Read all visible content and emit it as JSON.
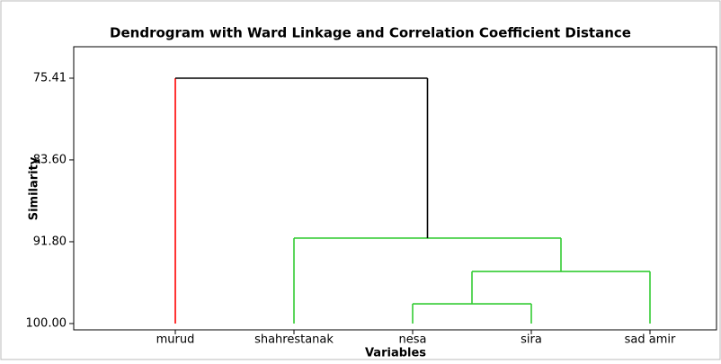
{
  "chart_data": {
    "type": "dendrogram",
    "title": "Dendrogram with Ward Linkage and Correlation Coefficient Distance",
    "xlabel": "Variables",
    "ylabel": "Similarity",
    "categories": [
      "murud",
      "shahrestanak",
      "nesa",
      "sira",
      "sad amir"
    ],
    "leaf_colors": [
      "#ff0000",
      "#33cc33",
      "#33cc33",
      "#33cc33",
      "#33cc33"
    ],
    "merges": [
      {
        "children": [
          2,
          3
        ],
        "value": 98.02,
        "color": "#33cc33"
      },
      {
        "children": [
          5,
          4
        ],
        "value": 94.78,
        "color": "#33cc33"
      },
      {
        "children": [
          1,
          6
        ],
        "value": 91.44,
        "color": "#33cc33"
      },
      {
        "children": [
          0,
          7
        ],
        "value": 75.41,
        "color": "#000000"
      }
    ],
    "ylim": [
      100,
      75.41
    ],
    "yticks": [
      75.41,
      {
        "value": 83.6,
        "label": "83.60"
      },
      {
        "value": 91.8,
        "label": "91.80"
      },
      {
        "value": 100,
        "label": "100.00"
      }
    ]
  }
}
